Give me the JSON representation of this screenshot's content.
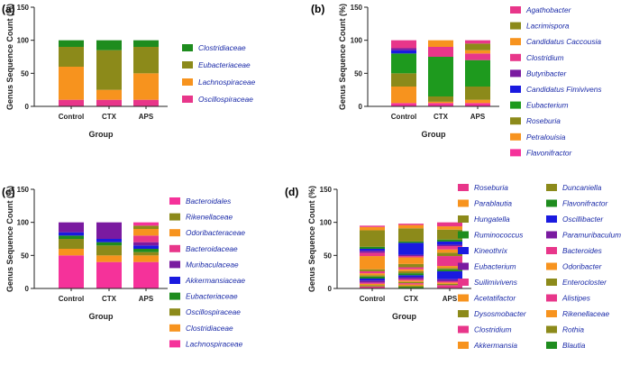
{
  "chart_data": [
    {
      "type": "bar",
      "stacked": true,
      "panel": "(a)",
      "xlabel": "Group",
      "ylabel": "Genus Sequence Count (%)",
      "ylim": [
        0,
        150
      ],
      "yticks": [
        0,
        50,
        100,
        150
      ],
      "categories": [
        "Control",
        "CTX",
        "APS"
      ],
      "legend_position": "right",
      "series": [
        {
          "name": "Oscillospiraceae",
          "color": "#e8368a",
          "values": [
            10,
            10,
            10
          ]
        },
        {
          "name": "Lachnospiraceae",
          "color": "#f7931e",
          "values": [
            50,
            15,
            40
          ]
        },
        {
          "name": "Eubacteriaceae",
          "color": "#8c8a1a",
          "values": [
            30,
            60,
            40
          ]
        },
        {
          "name": "Clostridiaceae",
          "color": "#1e8c1e",
          "values": [
            10,
            15,
            10
          ]
        }
      ]
    },
    {
      "type": "bar",
      "stacked": true,
      "panel": "(b)",
      "xlabel": "Group",
      "ylabel": "Genus Sequence Count (%)",
      "ylim": [
        0,
        150
      ],
      "yticks": [
        0,
        50,
        100,
        150
      ],
      "categories": [
        "Control",
        "CTX",
        "APS"
      ],
      "legend_position": "right",
      "series": [
        {
          "name": "Flavonifractor",
          "color": "#f5329a",
          "values": [
            5,
            5,
            5
          ]
        },
        {
          "name": "Petralouisia",
          "color": "#f7931e",
          "values": [
            25,
            2,
            5
          ]
        },
        {
          "name": "Roseburia",
          "color": "#8c8a1a",
          "values": [
            20,
            8,
            20
          ]
        },
        {
          "name": "Eubacterium",
          "color": "#1e9a1e",
          "values": [
            30,
            60,
            40
          ]
        },
        {
          "name": "Candidatus Fimivivens",
          "color": "#1a1ae0",
          "values": [
            5,
            0,
            0
          ]
        },
        {
          "name": "Butyribacter",
          "color": "#7a1aa0",
          "values": [
            3,
            0,
            0
          ]
        },
        {
          "name": "Clostridium",
          "color": "#e8368a",
          "values": [
            12,
            15,
            10
          ]
        },
        {
          "name": "Candidatus Caccousia",
          "color": "#f7931e",
          "values": [
            0,
            10,
            5
          ]
        },
        {
          "name": "Lacrimispora",
          "color": "#8c8a1a",
          "values": [
            0,
            0,
            10
          ]
        },
        {
          "name": "Agathobacter",
          "color": "#e8368a",
          "values": [
            0,
            0,
            5
          ]
        }
      ]
    },
    {
      "type": "bar",
      "stacked": true,
      "panel": "(c)",
      "xlabel": "Group",
      "ylabel": "Genus Sequence Count (%)",
      "ylim": [
        0,
        150
      ],
      "yticks": [
        0,
        50,
        100,
        150
      ],
      "categories": [
        "Control",
        "CTX",
        "APS"
      ],
      "legend_position": "right",
      "series": [
        {
          "name": "Lachnospiraceae",
          "color": "#f5329a",
          "values": [
            50,
            40,
            40
          ]
        },
        {
          "name": "Clostridiaceae",
          "color": "#f7931e",
          "values": [
            10,
            10,
            10
          ]
        },
        {
          "name": "Oscillospiraceae",
          "color": "#8c8a1a",
          "values": [
            15,
            15,
            5
          ]
        },
        {
          "name": "Eubacteriaceae",
          "color": "#1e8c1e",
          "values": [
            5,
            5,
            5
          ]
        },
        {
          "name": "Akkermansiaceae",
          "color": "#1a1ae0",
          "values": [
            5,
            5,
            5
          ]
        },
        {
          "name": "Muribaculaceae",
          "color": "#7a1aa0",
          "values": [
            15,
            25,
            5
          ]
        },
        {
          "name": "Bacteroidaceae",
          "color": "#e8368a",
          "values": [
            0,
            0,
            10
          ]
        },
        {
          "name": "Odoribacteraceae",
          "color": "#f7931e",
          "values": [
            0,
            0,
            10
          ]
        },
        {
          "name": "Rikenellaceae",
          "color": "#8c8a1a",
          "values": [
            0,
            0,
            5
          ]
        },
        {
          "name": "Bacteroidales",
          "color": "#f5329a",
          "values": [
            0,
            0,
            5
          ]
        }
      ]
    },
    {
      "type": "bar",
      "stacked": true,
      "panel": "(d)",
      "xlabel": "Group",
      "ylabel": "Genus Sequence Count (%)",
      "ylim": [
        0,
        150
      ],
      "yticks": [
        0,
        50,
        100,
        150
      ],
      "categories": [
        "Control",
        "CTX",
        "APS"
      ],
      "legend_position": "right",
      "legend_columns": 2,
      "series": [
        {
          "name": "Blautia",
          "color": "#1e8c1e",
          "values": [
            0,
            2,
            0
          ]
        },
        {
          "name": "Rothia",
          "color": "#8c8a1a",
          "values": [
            0,
            2,
            0
          ]
        },
        {
          "name": "Rikenellaceae",
          "color": "#f7931e",
          "values": [
            0,
            2,
            0
          ]
        },
        {
          "name": "Alistipes",
          "color": "#e8368a",
          "values": [
            3,
            2,
            5
          ]
        },
        {
          "name": "Enterocloster",
          "color": "#8c8a1a",
          "values": [
            2,
            2,
            2
          ]
        },
        {
          "name": "Odoribacter",
          "color": "#f7931e",
          "values": [
            2,
            2,
            2
          ]
        },
        {
          "name": "Bacteroides",
          "color": "#e8368a",
          "values": [
            2,
            2,
            2
          ]
        },
        {
          "name": "Paramuribaculum",
          "color": "#7a1aa0",
          "values": [
            3,
            3,
            3
          ]
        },
        {
          "name": "Oscillibacter",
          "color": "#1a1ae0",
          "values": [
            3,
            3,
            12
          ]
        },
        {
          "name": "Flavonifractor",
          "color": "#1e8c1e",
          "values": [
            3,
            3,
            3
          ]
        },
        {
          "name": "Duncaniella",
          "color": "#8c8a1a",
          "values": [
            2,
            3,
            2
          ]
        },
        {
          "name": "Akkermansia",
          "color": "#f7931e",
          "values": [
            3,
            3,
            3
          ]
        },
        {
          "name": "Clostridium",
          "color": "#e8368a",
          "values": [
            3,
            3,
            15
          ]
        },
        {
          "name": "Dysosmobacter",
          "color": "#8c8a1a",
          "values": [
            3,
            5,
            5
          ]
        },
        {
          "name": "Acetatifactor",
          "color": "#f7931e",
          "values": [
            20,
            10,
            5
          ]
        },
        {
          "name": "Suilimivivens",
          "color": "#e8368a",
          "values": [
            5,
            2,
            5
          ]
        },
        {
          "name": "Eubacterium",
          "color": "#7a1aa0",
          "values": [
            3,
            2,
            2
          ]
        },
        {
          "name": "Kineothrix",
          "color": "#1a1ae0",
          "values": [
            3,
            18,
            5
          ]
        },
        {
          "name": "Ruminococcus",
          "color": "#1e8c1e",
          "values": [
            3,
            2,
            3
          ]
        },
        {
          "name": "Hungatella",
          "color": "#8c8a1a",
          "values": [
            25,
            20,
            15
          ]
        },
        {
          "name": "Parablautia",
          "color": "#f7931e",
          "values": [
            5,
            5,
            5
          ]
        },
        {
          "name": "Roseburia",
          "color": "#e8368a",
          "values": [
            2,
            2,
            6
          ]
        }
      ]
    }
  ]
}
